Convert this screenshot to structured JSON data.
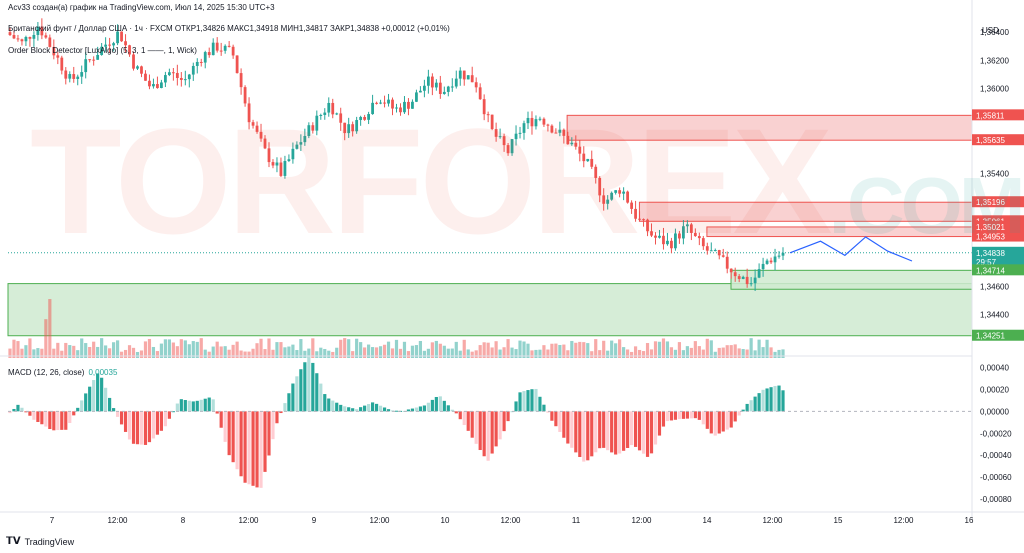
{
  "header": {
    "credit": "Acv33 создан(а) график на TradingView.com, Июл 14, 2025 15:30 UTC+3",
    "symbol_line": "Британский фунт / Доллар США · 1ч · FXCM  ОТКР1,34826  МАКС1,34918  МИН1,34817  ЗАКР1,34838  +0,00012 (+0,01%)",
    "indicator_line": "Order Block Detector [LuxAlgo] (5, 3, 1 ——, 1, Wick)"
  },
  "currency": "USD",
  "watermark": {
    "word": "TORFOREX",
    "suffix": ".COM",
    "color": "#e74c3c"
  },
  "footer": {
    "brand": "TradingView"
  },
  "colors": {
    "up": "#26a69a",
    "down": "#ef5350",
    "bear_zone": "#f8c9c9",
    "bull_zone": "#cfead0",
    "forecast": "#2962ff"
  },
  "chart_data": {
    "type": "candlestick",
    "price_axis": {
      "min": 1.3415,
      "max": 1.365,
      "ticks": [
        "1,36400",
        "1,36200",
        "1,36000",
        "1,35400",
        "1,34600",
        "1,34400"
      ]
    },
    "time_axis": {
      "ticks": [
        "7",
        "12:00",
        "8",
        "12:00",
        "9",
        "12:00",
        "10",
        "12:00",
        "11",
        "12:00",
        "14",
        "12:00",
        "15",
        "12:00",
        "16"
      ]
    },
    "price_labels": [
      {
        "value": 1.35811,
        "text": "1,35811",
        "kind": "bear"
      },
      {
        "value": 1.35635,
        "text": "1,35635",
        "kind": "bear"
      },
      {
        "value": 1.35196,
        "text": "1,35196",
        "kind": "bear"
      },
      {
        "value": 1.35061,
        "text": "1,35061",
        "kind": "bear"
      },
      {
        "value": 1.35021,
        "text": "1,35021",
        "kind": "bear"
      },
      {
        "value": 1.34953,
        "text": "1,34953",
        "kind": "bear"
      },
      {
        "value": 1.34838,
        "text": "1,34838",
        "kind": "last",
        "sub": "29:57"
      },
      {
        "value": 1.34714,
        "text": "1,34714",
        "kind": "bull"
      },
      {
        "value": 1.34251,
        "text": "1,34251",
        "kind": "bull"
      }
    ],
    "zones": [
      {
        "kind": "bear",
        "from": 1.35635,
        "to": 1.35811,
        "start": 0.58
      },
      {
        "kind": "bear",
        "from": 1.35061,
        "to": 1.35196,
        "start": 0.655
      },
      {
        "kind": "bear",
        "from": 1.34953,
        "to": 1.35021,
        "start": 0.725
      },
      {
        "kind": "bull",
        "from": 1.34251,
        "to": 1.3462,
        "start": 0.0
      },
      {
        "kind": "bull",
        "from": 1.3458,
        "to": 1.34714,
        "start": 0.75
      }
    ],
    "close_path": [
      1.364,
      1.3632,
      1.3645,
      1.3625,
      1.3605,
      1.3618,
      1.363,
      1.364,
      1.3615,
      1.36,
      1.3612,
      1.3605,
      1.3622,
      1.363,
      1.3625,
      1.358,
      1.3555,
      1.354,
      1.356,
      1.3575,
      1.359,
      1.357,
      1.358,
      1.3595,
      1.3585,
      1.359,
      1.3605,
      1.3598,
      1.3612,
      1.3605,
      1.357,
      1.3555,
      1.3575,
      1.358,
      1.357,
      1.356,
      1.3545,
      1.352,
      1.353,
      1.3508,
      1.3495,
      1.349,
      1.3502,
      1.3488,
      1.348,
      1.347,
      1.3462,
      1.3478,
      1.3484
    ],
    "macd": {
      "label": "MACD (12, 26, close)",
      "value": "0,00035",
      "ticks": [
        "0,00040",
        "0,00020",
        "0,00000",
        "-0,00020",
        "-0,00040",
        "-0,00060",
        "-0,00080"
      ],
      "min": -0.0009,
      "max": 0.00045
    },
    "forecast": [
      [
        0.0,
        1.34838
      ],
      [
        0.25,
        1.3492
      ],
      [
        0.45,
        1.3482
      ],
      [
        0.62,
        1.3495
      ],
      [
        0.8,
        1.3485
      ],
      [
        1.0,
        1.3478
      ]
    ]
  }
}
